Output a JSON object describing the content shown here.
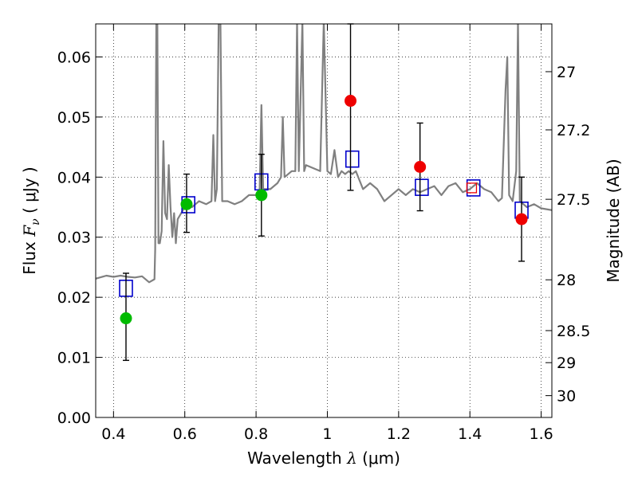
{
  "chart_data": {
    "type": "scatter",
    "xlabel": {
      "prefix": "Wavelength  ",
      "symbol": "λ",
      "suffix": " (μm)"
    },
    "ylabel": {
      "prefix": "Flux  ",
      "symbol": "F",
      "subscript": "ν",
      "suffix": "  ( μJy )"
    },
    "y2label": "Magnitude (AB)",
    "xlim": [
      0.35,
      1.63
    ],
    "ylim": [
      0.0,
      0.0655
    ],
    "grid": true,
    "x_ticks": [
      0.4,
      0.6,
      0.8,
      1.0,
      1.2,
      1.4,
      1.6
    ],
    "x_tick_labels": [
      "0.4",
      "0.6",
      "0.8",
      "1",
      "1.2",
      "1.4",
      "1.6"
    ],
    "y_ticks": [
      0.0,
      0.01,
      0.02,
      0.03,
      0.04,
      0.05,
      0.06
    ],
    "y_tick_labels": [
      "0.00",
      "0.01",
      "0.02",
      "0.03",
      "0.04",
      "0.05",
      "0.06"
    ],
    "mag_ticks": [
      27,
      27.2,
      27.5,
      28,
      28.5,
      29,
      30
    ],
    "mag_tick_labels": [
      "27",
      "27.2",
      "27.5",
      "28",
      "28.5",
      "29",
      "30"
    ],
    "series": [
      {
        "kind": "spectrum",
        "color": "#808080",
        "points": [
          [
            0.35,
            0.0231
          ],
          [
            0.38,
            0.0236
          ],
          [
            0.4,
            0.0234
          ],
          [
            0.42,
            0.0236
          ],
          [
            0.44,
            0.0234
          ],
          [
            0.46,
            0.0233
          ],
          [
            0.48,
            0.0235
          ],
          [
            0.5,
            0.0225
          ],
          [
            0.515,
            0.023
          ],
          [
            0.517,
            0.028
          ],
          [
            0.52,
            0.066
          ],
          [
            0.523,
            0.066
          ],
          [
            0.526,
            0.029
          ],
          [
            0.53,
            0.029
          ],
          [
            0.535,
            0.031
          ],
          [
            0.54,
            0.046
          ],
          [
            0.545,
            0.034
          ],
          [
            0.55,
            0.033
          ],
          [
            0.555,
            0.042
          ],
          [
            0.56,
            0.035
          ],
          [
            0.565,
            0.03
          ],
          [
            0.57,
            0.034
          ],
          [
            0.575,
            0.029
          ],
          [
            0.58,
            0.033
          ],
          [
            0.6,
            0.035
          ],
          [
            0.62,
            0.035
          ],
          [
            0.64,
            0.036
          ],
          [
            0.66,
            0.0355
          ],
          [
            0.675,
            0.036
          ],
          [
            0.68,
            0.047
          ],
          [
            0.685,
            0.036
          ],
          [
            0.69,
            0.038
          ],
          [
            0.695,
            0.066
          ],
          [
            0.7,
            0.066
          ],
          [
            0.705,
            0.036
          ],
          [
            0.72,
            0.036
          ],
          [
            0.74,
            0.0355
          ],
          [
            0.76,
            0.036
          ],
          [
            0.78,
            0.037
          ],
          [
            0.8,
            0.037
          ],
          [
            0.81,
            0.038
          ],
          [
            0.815,
            0.052
          ],
          [
            0.82,
            0.038
          ],
          [
            0.84,
            0.038
          ],
          [
            0.86,
            0.039
          ],
          [
            0.87,
            0.04
          ],
          [
            0.875,
            0.05
          ],
          [
            0.88,
            0.04
          ],
          [
            0.9,
            0.041
          ],
          [
            0.91,
            0.041
          ],
          [
            0.915,
            0.066
          ],
          [
            0.92,
            0.041
          ],
          [
            0.93,
            0.066
          ],
          [
            0.935,
            0.041
          ],
          [
            0.94,
            0.042
          ],
          [
            0.96,
            0.0415
          ],
          [
            0.98,
            0.041
          ],
          [
            0.99,
            0.066
          ],
          [
            1.0,
            0.041
          ],
          [
            1.01,
            0.0405
          ],
          [
            1.02,
            0.0445
          ],
          [
            1.03,
            0.04
          ],
          [
            1.04,
            0.041
          ],
          [
            1.05,
            0.0405
          ],
          [
            1.06,
            0.041
          ],
          [
            1.07,
            0.0405
          ],
          [
            1.08,
            0.041
          ],
          [
            1.09,
            0.0395
          ],
          [
            1.1,
            0.038
          ],
          [
            1.12,
            0.039
          ],
          [
            1.14,
            0.038
          ],
          [
            1.16,
            0.036
          ],
          [
            1.18,
            0.037
          ],
          [
            1.2,
            0.038
          ],
          [
            1.22,
            0.037
          ],
          [
            1.24,
            0.038
          ],
          [
            1.26,
            0.0375
          ],
          [
            1.28,
            0.038
          ],
          [
            1.3,
            0.0385
          ],
          [
            1.32,
            0.037
          ],
          [
            1.34,
            0.0385
          ],
          [
            1.36,
            0.039
          ],
          [
            1.38,
            0.0375
          ],
          [
            1.4,
            0.038
          ],
          [
            1.42,
            0.039
          ],
          [
            1.44,
            0.038
          ],
          [
            1.46,
            0.0375
          ],
          [
            1.48,
            0.036
          ],
          [
            1.49,
            0.0365
          ],
          [
            1.5,
            0.0545
          ],
          [
            1.505,
            0.06
          ],
          [
            1.51,
            0.037
          ],
          [
            1.52,
            0.036
          ],
          [
            1.53,
            0.041
          ],
          [
            1.535,
            0.066
          ],
          [
            1.54,
            0.036
          ],
          [
            1.56,
            0.035
          ],
          [
            1.58,
            0.0355
          ],
          [
            1.6,
            0.0348
          ],
          [
            1.63,
            0.0345
          ]
        ]
      },
      {
        "kind": "model-photometry",
        "marker": "square",
        "color": "#0000cc",
        "points": [
          [
            0.435,
            0.0215
          ],
          [
            0.61,
            0.0354
          ],
          [
            0.815,
            0.0392
          ],
          [
            1.07,
            0.043
          ],
          [
            1.265,
            0.0383
          ],
          [
            1.41,
            0.0382
          ],
          [
            1.545,
            0.0345
          ]
        ]
      },
      {
        "kind": "observed-green",
        "marker": "circle",
        "color": "#00bb00",
        "points": [
          {
            "x": 0.435,
            "y": 0.0165,
            "yerr_low": 0.0095,
            "yerr_high": 0.024
          },
          {
            "x": 0.605,
            "y": 0.0355,
            "yerr_low": 0.0308,
            "yerr_high": 0.0405
          },
          {
            "x": 0.815,
            "y": 0.037,
            "yerr_low": 0.0302,
            "yerr_high": 0.0438
          }
        ]
      },
      {
        "kind": "observed-red",
        "marker": "circle",
        "color": "#ee0000",
        "points": [
          {
            "x": 1.065,
            "y": 0.0527,
            "yerr_low": 0.0378,
            "yerr_high": 0.0655
          },
          {
            "x": 1.26,
            "y": 0.0417,
            "yerr_low": 0.0344,
            "yerr_high": 0.049
          },
          {
            "x": 1.545,
            "y": 0.033,
            "yerr_low": 0.026,
            "yerr_high": 0.04
          }
        ]
      },
      {
        "kind": "limit-marker",
        "marker": "small-square",
        "color": "#ee0000",
        "points": [
          [
            1.405,
            0.0382
          ]
        ]
      }
    ]
  }
}
